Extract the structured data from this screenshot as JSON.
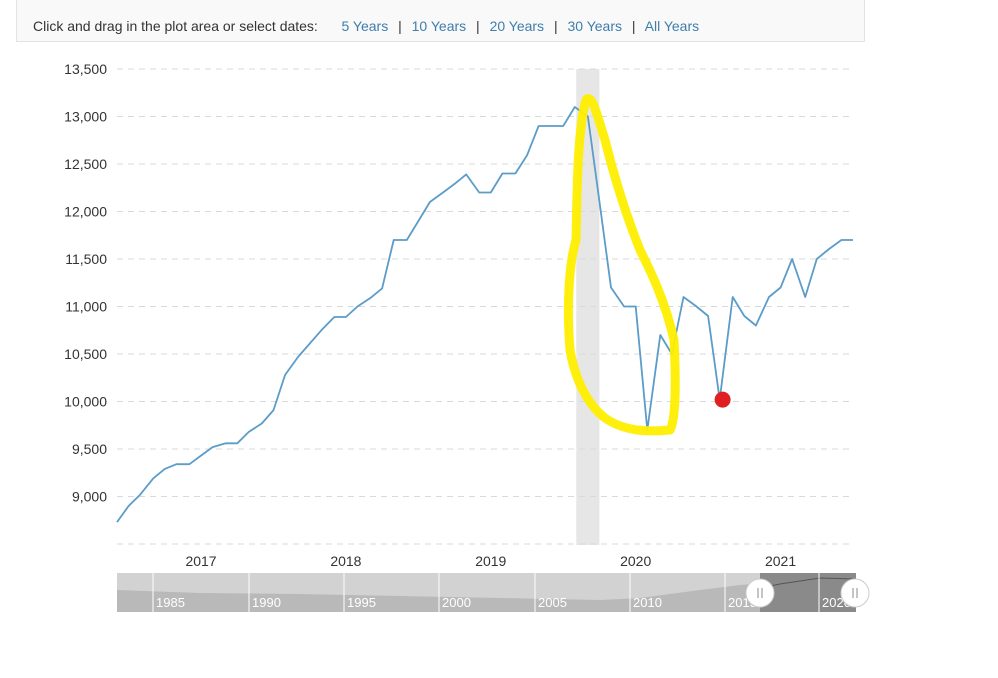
{
  "toolbar": {
    "prompt": "Click and drag in the plot area or select dates:",
    "ranges": [
      "5 Years",
      "10 Years",
      "20 Years",
      "30 Years",
      "All Years"
    ]
  },
  "navigator": {
    "years": [
      "1985",
      "1990",
      "1995",
      "2000",
      "2005",
      "2010",
      "2015",
      "2020"
    ]
  },
  "colors": {
    "line": "#5b9cc8",
    "recession_band": "#e6e6e6",
    "highlight": "#ffee00",
    "marker": "#e02020",
    "grid": "#d9d9d9",
    "navigator_bg": "#d2d2d2",
    "navigator_area": "#b9b9b9",
    "navigator_selected": "#8a8a8a"
  },
  "chart_data": {
    "type": "line",
    "title": "",
    "xlabel": "",
    "ylabel": "",
    "ylim": [
      8500,
      13500
    ],
    "xlim": [
      2016.42,
      2021.5
    ],
    "y_ticks": [
      9000,
      9500,
      10000,
      10500,
      11000,
      11500,
      12000,
      12500,
      13000,
      13500
    ],
    "y_tick_labels": [
      "9,000",
      "9,500",
      "10,000",
      "10,500",
      "11,000",
      "11,500",
      "12,000",
      "12,500",
      "13,000",
      "13,500"
    ],
    "x_ticks": [
      2017,
      2018,
      2019,
      2020,
      2021
    ],
    "x_tick_labels": [
      "2017",
      "2018",
      "2019",
      "2020",
      "2021"
    ],
    "grid": "horizontal dashed",
    "legend": "none",
    "recession_band": [
      2019.59,
      2019.75
    ],
    "series": [
      {
        "x": [
          2016.42,
          2016.5,
          2016.58,
          2016.67,
          2016.75,
          2016.83,
          2016.92,
          2017.0,
          2017.08,
          2017.17,
          2017.25,
          2017.33,
          2017.42,
          2017.5,
          2017.58,
          2017.67,
          2017.75,
          2017.83,
          2017.92,
          2018.0,
          2018.08,
          2018.17,
          2018.25,
          2018.33,
          2018.42,
          2018.5,
          2018.58,
          2018.67,
          2018.75,
          2018.83,
          2018.92,
          2019.0,
          2019.08,
          2019.17,
          2019.25,
          2019.33,
          2019.42,
          2019.5,
          2019.58,
          2019.67,
          2019.75,
          2019.83,
          2019.92,
          2020.0,
          2020.08,
          2020.17,
          2020.25,
          2020.33,
          2020.42,
          2020.5,
          2020.58,
          2020.67,
          2020.75,
          2020.83,
          2020.92,
          2021.0,
          2021.08,
          2021.17,
          2021.25,
          2021.33,
          2021.42,
          2021.5
        ],
        "values": [
          8730,
          8900,
          9020,
          9190,
          9290,
          9340,
          9340,
          9430,
          9520,
          9560,
          9560,
          9680,
          9770,
          9910,
          10280,
          10470,
          10610,
          10750,
          10890,
          10890,
          11000,
          11090,
          11190,
          11700,
          11700,
          11900,
          12100,
          12200,
          12290,
          12390,
          12200,
          12200,
          12400,
          12400,
          12590,
          12900,
          12900,
          12900,
          13100,
          13000,
          12100,
          11200,
          11000,
          11000,
          9700,
          10700,
          10500,
          11100,
          11000,
          10900,
          10020,
          11100,
          10900,
          10800,
          11100,
          11200,
          11500,
          11100,
          11500,
          11600,
          11700,
          11700
        ]
      }
    ],
    "marker_point": {
      "x": 2020.6,
      "y": 10020
    }
  }
}
